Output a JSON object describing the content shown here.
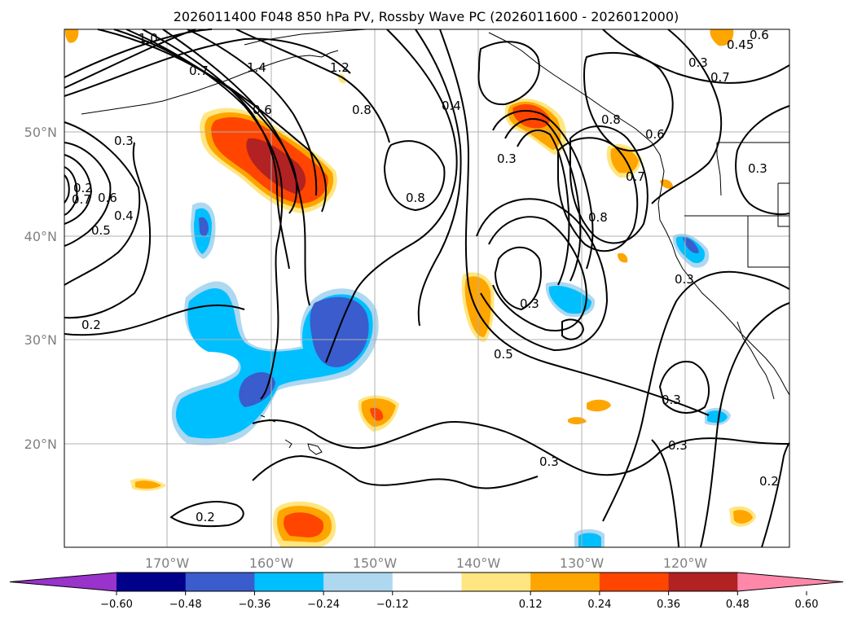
{
  "title": "2026011400 F048 850 hPa PV, Rossby Wave PC (2026011600 - 2026012000)",
  "lon_labels": [
    "170°W",
    "160°W",
    "150°W",
    "140°W",
    "130°W",
    "120°W"
  ],
  "lat_labels": [
    "50°N",
    "40°N",
    "30°N",
    "20°N"
  ],
  "contour_labels": [
    "1.0",
    "0.7",
    "1.4",
    "1.2",
    "0.6",
    "0.8",
    "0.4",
    "0.3",
    "0.8",
    "0.8",
    "0.3",
    "0.5",
    "0.3",
    "0.6",
    "0.7",
    "0.8",
    "0.3",
    "0.45",
    "0.6",
    "0.7",
    "0.3",
    "0.3",
    "0.7",
    "0.6",
    "0.5",
    "0.4",
    "0.2",
    "0.3",
    "0.3",
    "0.3",
    "0.2",
    "0.2",
    "0.2"
  ],
  "colorbar": {
    "ticks": [
      "−0.60",
      "−0.48",
      "−0.36",
      "−0.24",
      "−0.12",
      "0.12",
      "0.24",
      "0.36",
      "0.48",
      "0.60"
    ],
    "colors": [
      "#9933cc",
      "#00008b",
      "#3a5ccc",
      "#00bfff",
      "#add8f0",
      "#ffffff",
      "#ffe680",
      "#ffa500",
      "#ff4500",
      "#b22222",
      "#ff88aa"
    ]
  }
}
